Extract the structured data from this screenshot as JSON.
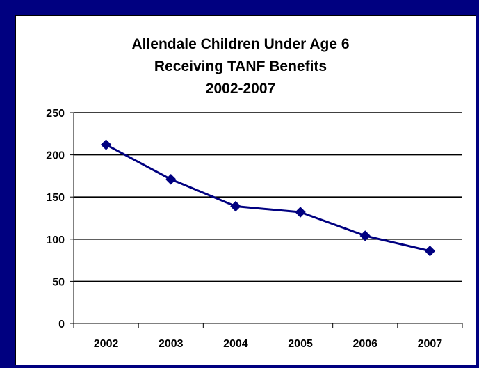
{
  "chart_data": {
    "type": "line",
    "title_lines": [
      "Allendale Children Under Age 6",
      "Receiving TANF Benefits",
      "2002-2007"
    ],
    "xlabel": "",
    "ylabel": "",
    "categories": [
      "2002",
      "2003",
      "2004",
      "2005",
      "2006",
      "2007"
    ],
    "series": [
      {
        "values": [
          212,
          171,
          139,
          132,
          104,
          86
        ]
      }
    ],
    "ylim": [
      0,
      250
    ],
    "yticks": [
      0,
      50,
      100,
      150,
      200,
      250
    ],
    "grid": true,
    "legend": "none",
    "line_color": "#000080",
    "frame_color": "#000080"
  }
}
